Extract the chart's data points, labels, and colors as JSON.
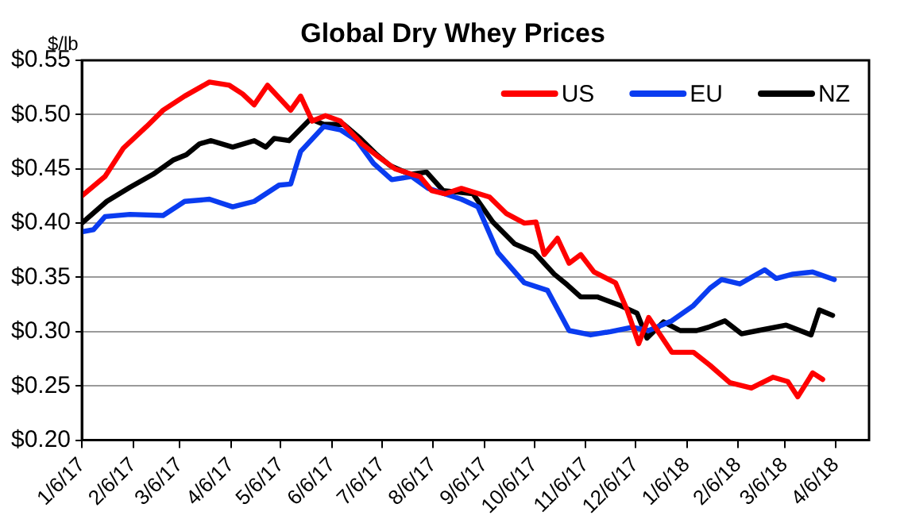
{
  "chart_data": {
    "type": "line",
    "title": "Global Dry Whey Prices",
    "ylabel": "$/lb",
    "xlim": [
      "2017-01-06",
      "2018-04-26"
    ],
    "xticks": [
      {
        "value": "2017-01-06",
        "label": "1/6/17"
      },
      {
        "value": "2017-02-06",
        "label": "2/6/17"
      },
      {
        "value": "2017-03-06",
        "label": "3/6/17"
      },
      {
        "value": "2017-04-06",
        "label": "4/6/17"
      },
      {
        "value": "2017-05-06",
        "label": "5/6/17"
      },
      {
        "value": "2017-06-06",
        "label": "6/6/17"
      },
      {
        "value": "2017-07-06",
        "label": "7/6/17"
      },
      {
        "value": "2017-08-06",
        "label": "8/6/17"
      },
      {
        "value": "2017-09-06",
        "label": "9/6/17"
      },
      {
        "value": "2017-10-06",
        "label": "10/6/17"
      },
      {
        "value": "2017-11-06",
        "label": "11/6/17"
      },
      {
        "value": "2017-12-06",
        "label": "12/6/17"
      },
      {
        "value": "2018-01-06",
        "label": "1/6/18"
      },
      {
        "value": "2018-02-06",
        "label": "2/6/18"
      },
      {
        "value": "2018-03-06",
        "label": "3/6/18"
      },
      {
        "value": "2018-04-06",
        "label": "4/6/18"
      }
    ],
    "ylim": [
      0.2,
      0.55
    ],
    "yticks": [
      {
        "value": 0.2,
        "label": "$0.20"
      },
      {
        "value": 0.25,
        "label": "$0.25"
      },
      {
        "value": 0.3,
        "label": "$0.30"
      },
      {
        "value": 0.35,
        "label": "$0.35"
      },
      {
        "value": 0.4,
        "label": "$0.40"
      },
      {
        "value": 0.45,
        "label": "$0.45"
      },
      {
        "value": 0.5,
        "label": "$0.50"
      },
      {
        "value": 0.55,
        "label": "$0.55"
      }
    ],
    "grid": "y",
    "legend": "top right",
    "marker": "none",
    "line_style": "solid",
    "series": [
      {
        "name": "US",
        "color": "#ff0000",
        "x": [
          "2017-01-06",
          "2017-01-20",
          "2017-01-31",
          "2017-02-14",
          "2017-02-24",
          "2017-03-09",
          "2017-03-24",
          "2017-04-05",
          "2017-04-13",
          "2017-04-20",
          "2017-04-28",
          "2017-05-12",
          "2017-05-18",
          "2017-05-25",
          "2017-06-02",
          "2017-06-11",
          "2017-06-24",
          "2017-07-04",
          "2017-07-14",
          "2017-07-24",
          "2017-07-29",
          "2017-08-05",
          "2017-08-13",
          "2017-08-23",
          "2017-09-09",
          "2017-09-19",
          "2017-09-30",
          "2017-10-07",
          "2017-10-12",
          "2017-10-20",
          "2017-10-27",
          "2017-11-03",
          "2017-11-11",
          "2017-11-24",
          "2017-12-01",
          "2017-12-08",
          "2017-12-14",
          "2017-12-28",
          "2018-01-10",
          "2018-01-20",
          "2018-02-01",
          "2018-02-14",
          "2018-02-27",
          "2018-03-08",
          "2018-03-14",
          "2018-03-23",
          "2018-03-29"
        ],
        "values": [
          0.425,
          0.443,
          0.469,
          0.489,
          0.504,
          0.517,
          0.53,
          0.527,
          0.519,
          0.509,
          0.527,
          0.504,
          0.517,
          0.494,
          0.499,
          0.494,
          0.473,
          0.461,
          0.45,
          0.445,
          0.443,
          0.43,
          0.427,
          0.432,
          0.424,
          0.409,
          0.4,
          0.401,
          0.371,
          0.386,
          0.363,
          0.371,
          0.355,
          0.345,
          0.32,
          0.289,
          0.313,
          0.281,
          0.281,
          0.269,
          0.253,
          0.248,
          0.258,
          0.254,
          0.24,
          0.262,
          0.256
        ]
      },
      {
        "name": "EU",
        "color": "#0a3cf0",
        "x": [
          "2017-01-06",
          "2017-01-13",
          "2017-01-20",
          "2017-02-04",
          "2017-02-24",
          "2017-03-09",
          "2017-03-24",
          "2017-04-07",
          "2017-04-20",
          "2017-05-05",
          "2017-05-12",
          "2017-05-18",
          "2017-06-01",
          "2017-06-11",
          "2017-06-21",
          "2017-07-01",
          "2017-07-12",
          "2017-07-24",
          "2017-08-03",
          "2017-08-23",
          "2017-09-02",
          "2017-09-14",
          "2017-09-30",
          "2017-10-14",
          "2017-10-27",
          "2017-11-09",
          "2017-11-21",
          "2017-12-04",
          "2017-12-14",
          "2017-12-28",
          "2018-01-10",
          "2018-01-20",
          "2018-01-27",
          "2018-02-07",
          "2018-02-22",
          "2018-03-01",
          "2018-03-11",
          "2018-03-23",
          "2018-04-05"
        ],
        "values": [
          0.392,
          0.394,
          0.406,
          0.408,
          0.407,
          0.42,
          0.422,
          0.415,
          0.42,
          0.435,
          0.436,
          0.466,
          0.489,
          0.486,
          0.476,
          0.455,
          0.44,
          0.443,
          0.432,
          0.422,
          0.415,
          0.373,
          0.345,
          0.338,
          0.301,
          0.297,
          0.3,
          0.304,
          0.301,
          0.31,
          0.324,
          0.34,
          0.348,
          0.344,
          0.357,
          0.349,
          0.353,
          0.355,
          0.348
        ]
      },
      {
        "name": "NZ",
        "color": "#000000",
        "x": [
          "2017-01-06",
          "2017-01-21",
          "2017-02-04",
          "2017-02-18",
          "2017-03-02",
          "2017-03-10",
          "2017-03-18",
          "2017-03-25",
          "2017-04-07",
          "2017-04-20",
          "2017-04-27",
          "2017-05-02",
          "2017-05-11",
          "2017-05-24",
          "2017-06-01",
          "2017-06-13",
          "2017-06-23",
          "2017-07-03",
          "2017-07-11",
          "2017-07-23",
          "2017-08-02",
          "2017-08-12",
          "2017-08-30",
          "2017-09-11",
          "2017-09-24",
          "2017-10-06",
          "2017-10-18",
          "2017-10-26",
          "2017-11-03",
          "2017-11-13",
          "2017-11-27",
          "2017-12-07",
          "2017-12-13",
          "2017-12-23",
          "2018-01-02",
          "2018-01-12",
          "2018-01-19",
          "2018-01-29",
          "2018-02-08",
          "2018-02-18",
          "2018-03-07",
          "2018-03-22",
          "2018-03-27",
          "2018-04-04"
        ],
        "values": [
          0.4,
          0.42,
          0.433,
          0.445,
          0.458,
          0.463,
          0.473,
          0.476,
          0.47,
          0.476,
          0.47,
          0.478,
          0.476,
          0.496,
          0.491,
          0.491,
          0.478,
          0.463,
          0.453,
          0.445,
          0.447,
          0.43,
          0.427,
          0.401,
          0.381,
          0.373,
          0.353,
          0.343,
          0.332,
          0.332,
          0.324,
          0.317,
          0.294,
          0.309,
          0.301,
          0.301,
          0.304,
          0.31,
          0.298,
          0.301,
          0.306,
          0.297,
          0.32,
          0.315
        ]
      }
    ]
  }
}
